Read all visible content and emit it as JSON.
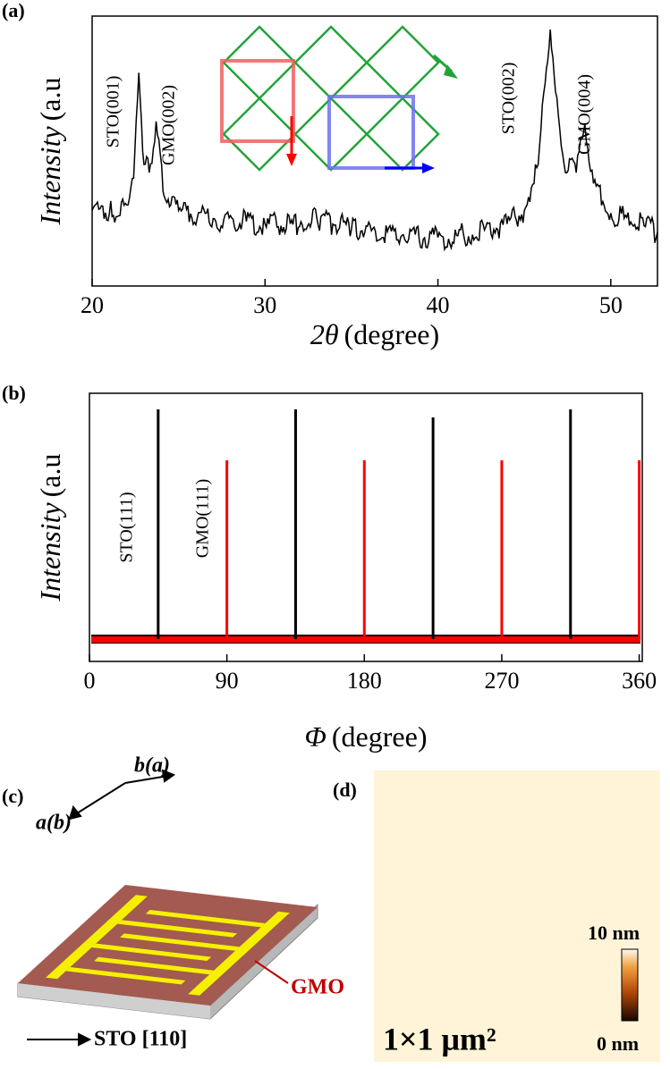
{
  "chart_data": [
    {
      "type": "line",
      "panel": "(a)",
      "ylabel_italic": "Intensity",
      "ylabel": "(a.u",
      "xlabel_symbol": "2θ",
      "xlabel": "(degree)",
      "x": [
        20,
        21,
        22,
        22.4,
        22.7,
        23,
        23.3,
        23.7,
        24.1,
        25,
        27,
        30,
        32,
        33,
        35,
        38,
        40,
        42,
        44,
        45,
        45.8,
        46.2,
        46.5,
        46.8,
        47.3,
        48,
        48.5,
        49,
        50,
        52,
        52.7
      ],
      "series": [
        {
          "name": "XRD",
          "color": "#000000",
          "values": [
            28,
            27,
            30,
            40,
            79,
            45,
            42,
            61,
            35,
            28,
            25,
            23,
            22,
            25,
            21,
            19,
            18,
            19,
            23,
            28,
            45,
            75,
            95,
            72,
            45,
            42,
            60,
            38,
            27,
            22,
            20
          ]
        }
      ],
      "annotations": [
        "STO(001)",
        "GMO(002)",
        "STO(002)",
        "GMO(004)"
      ],
      "xlim": [
        20,
        52.7
      ],
      "xticks": [
        20,
        30,
        40,
        50
      ],
      "ylim": [
        0,
        100
      ]
    },
    {
      "type": "spike",
      "panel": "(b)",
      "ylabel_italic": "Intensity",
      "ylabel": "(a.u",
      "xlabel_symbol": "Φ",
      "xlabel": "(degree)",
      "series": [
        {
          "name": "STO(111)",
          "color": "#000000",
          "x": [
            45,
            135,
            225,
            315
          ],
          "values": [
            94,
            94,
            91,
            94
          ]
        },
        {
          "name": "GMO(111)",
          "color": "#ff0000",
          "x": [
            90,
            180,
            270,
            360
          ],
          "values": [
            75,
            75,
            75,
            75
          ]
        }
      ],
      "xlim": [
        0,
        362
      ],
      "xticks": [
        0,
        90,
        180,
        270,
        360
      ],
      "ylim": [
        0,
        100
      ]
    }
  ],
  "diagram": {
    "panel": "(c)",
    "axis_b": "b(a)",
    "axis_a": "a(b)",
    "film": "GMO",
    "substrate": "STO [110]"
  },
  "afm": {
    "panel": "(d)",
    "scale_max": "10 nm",
    "scale_min": "0 nm",
    "size": "1×1 μm²"
  }
}
